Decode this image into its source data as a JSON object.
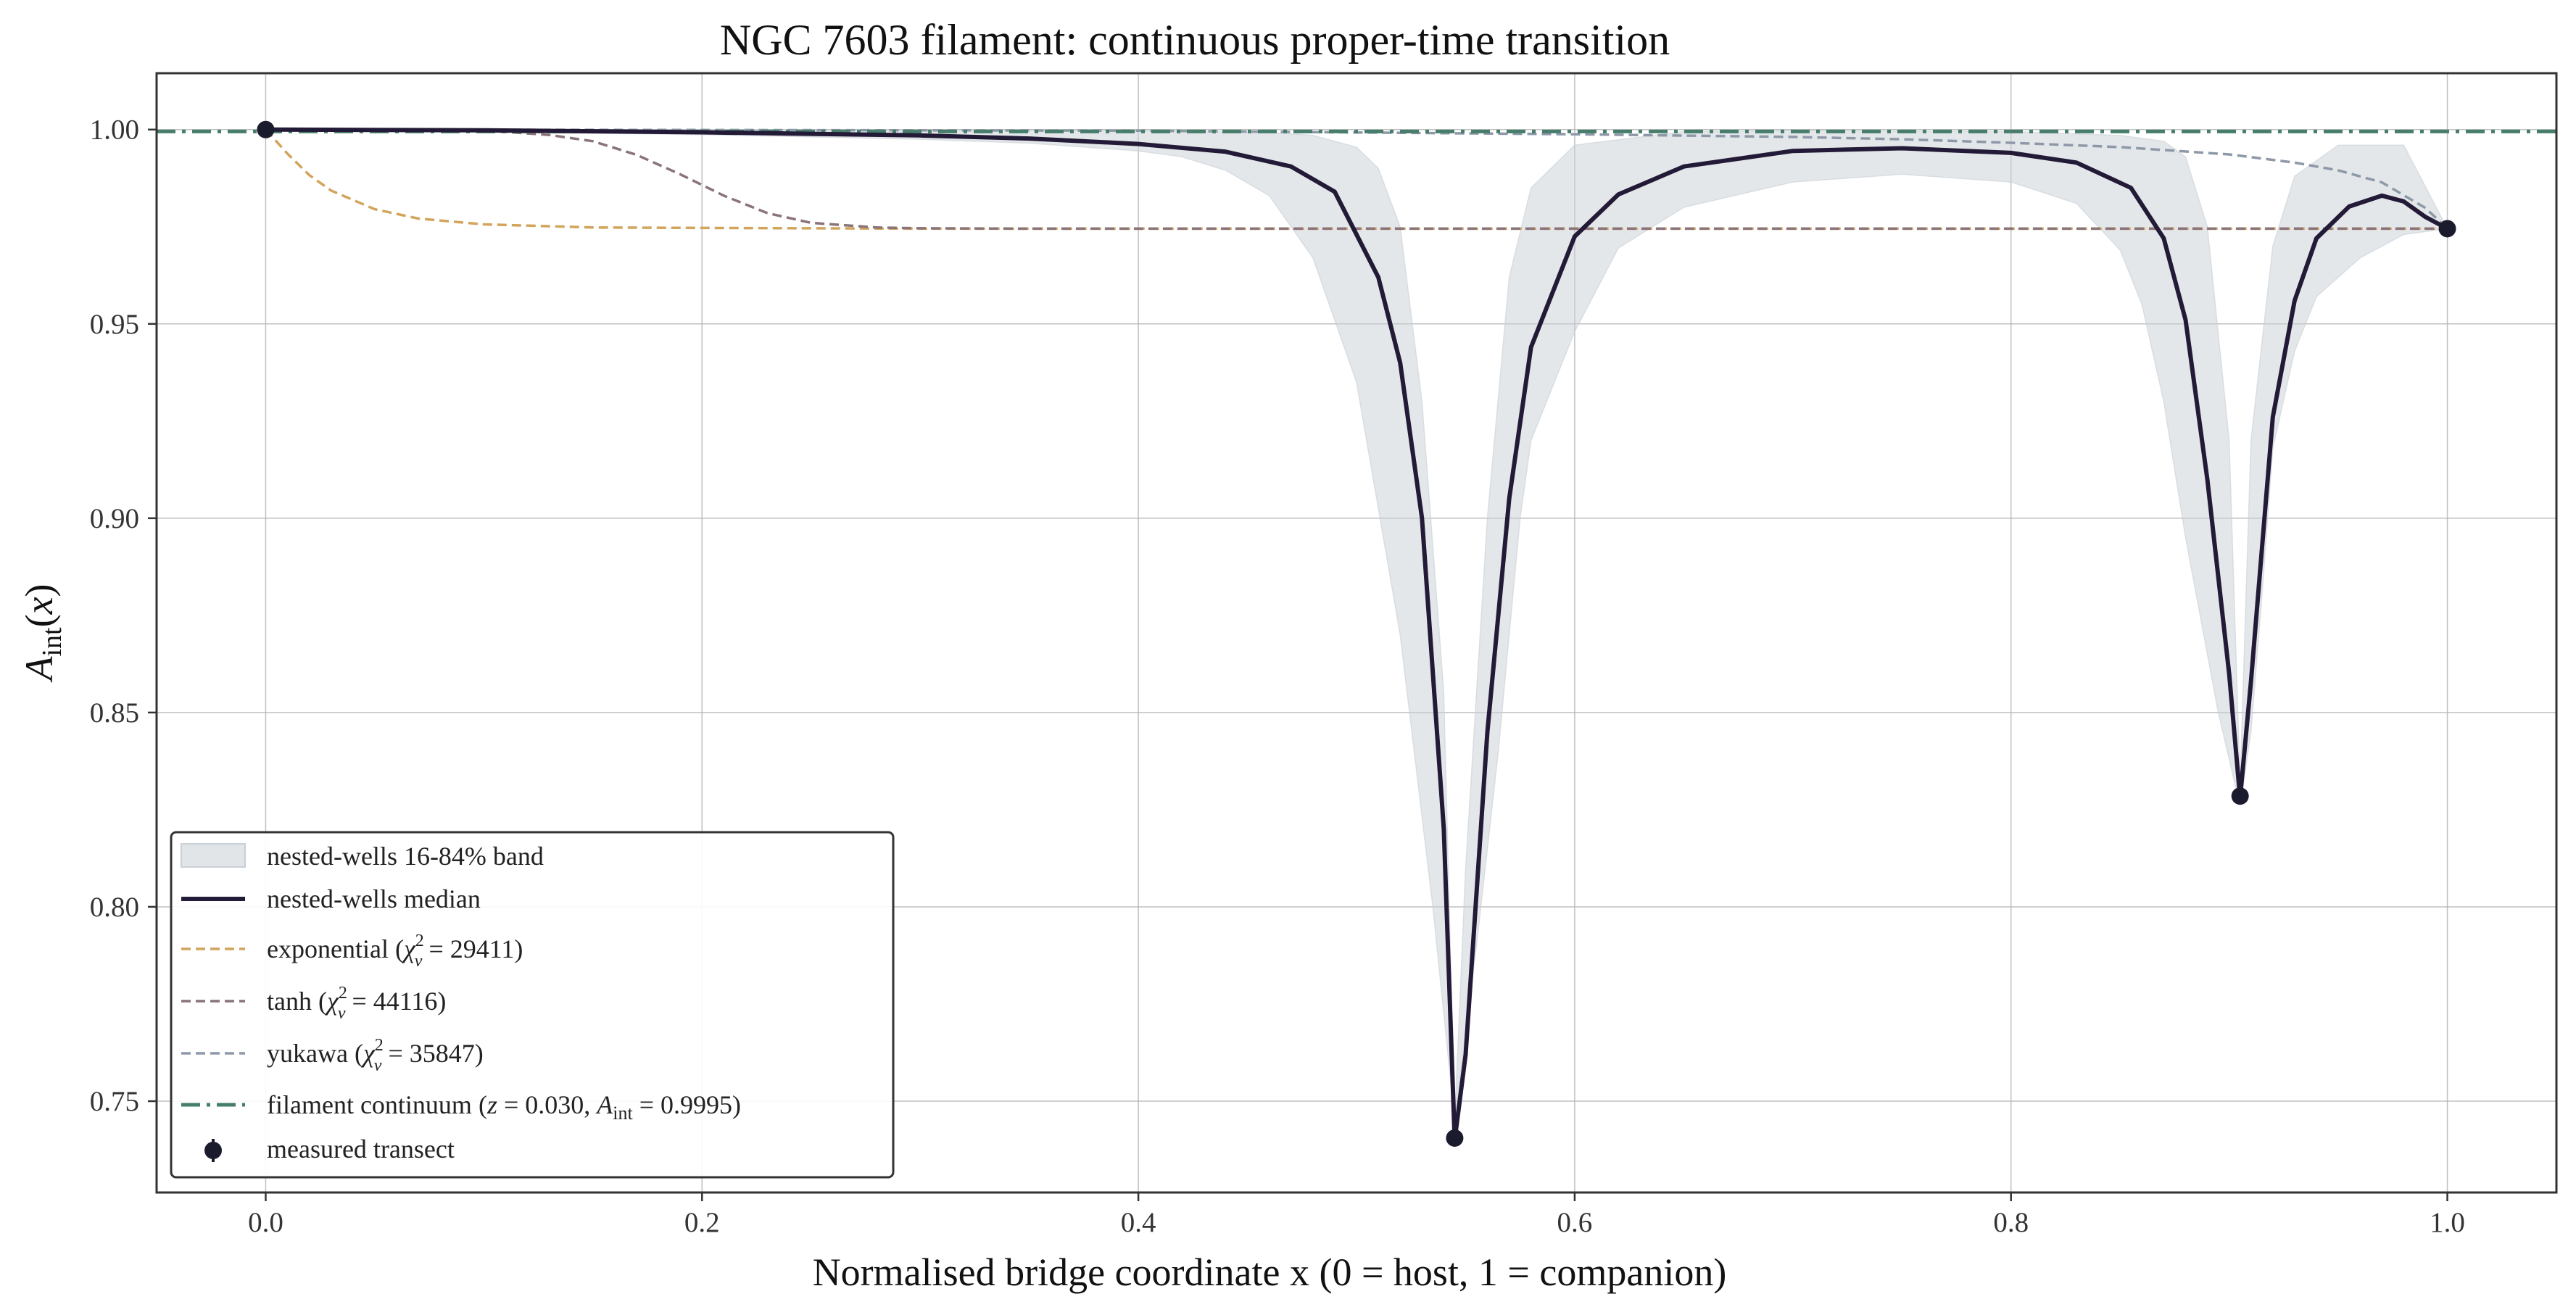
{
  "chart_data": {
    "type": "line",
    "title": "NGC 7603 filament: continuous proper-time transition",
    "xlabel": "Normalised bridge coordinate x (0 = host, 1 = companion)",
    "ylabel": "A_int(x)",
    "xlim": [
      -0.05,
      1.05
    ],
    "ylim": [
      0.7265,
      1.0145
    ],
    "xticks": [
      "0.0",
      "0.2",
      "0.4",
      "0.6",
      "0.8",
      "1.0"
    ],
    "yticks": [
      "0.75",
      "0.80",
      "0.85",
      "0.90",
      "0.95",
      "1.00"
    ],
    "grid": true,
    "legend_position": "lower-left",
    "colors": {
      "band": "#c9d0d6",
      "median": "#221a36",
      "exponential": "#d2a45c",
      "tanh": "#8a7379",
      "yukawa": "#8e99a8",
      "continuum": "#477e6b",
      "measured": "#1b1b2e"
    },
    "legend": [
      {
        "key": "band",
        "label": "nested-wells 16-84% band"
      },
      {
        "key": "median",
        "label": "nested-wells median"
      },
      {
        "key": "exponential",
        "label": "exponential (χ²_ν = 29411)"
      },
      {
        "key": "tanh",
        "label": "tanh (χ²_ν = 44116)"
      },
      {
        "key": "yukawa",
        "label": "yukawa (χ²_ν = 35847)"
      },
      {
        "key": "continuum",
        "label": "filament continuum (z = 0.030, A_int = 0.9995)"
      },
      {
        "key": "measured",
        "label": "measured transect"
      }
    ],
    "series": [
      {
        "name": "nested-wells median",
        "x": [
          0.0,
          0.1,
          0.2,
          0.3,
          0.35,
          0.4,
          0.44,
          0.47,
          0.49,
          0.51,
          0.52,
          0.53,
          0.54,
          0.545,
          0.55,
          0.56,
          0.57,
          0.58,
          0.6,
          0.62,
          0.65,
          0.7,
          0.75,
          0.8,
          0.83,
          0.855,
          0.87,
          0.88,
          0.89,
          0.9,
          0.905,
          0.91,
          0.92,
          0.93,
          0.94,
          0.955,
          0.97,
          0.98,
          0.99,
          1.0
        ],
        "y": [
          1.0,
          0.9998,
          0.9993,
          0.9985,
          0.9977,
          0.9963,
          0.9943,
          0.9905,
          0.984,
          0.962,
          0.94,
          0.9,
          0.82,
          0.74,
          0.762,
          0.845,
          0.905,
          0.944,
          0.9725,
          0.9833,
          0.9905,
          0.9945,
          0.9952,
          0.994,
          0.9915,
          0.985,
          0.972,
          0.951,
          0.91,
          0.86,
          0.828,
          0.858,
          0.926,
          0.956,
          0.972,
          0.9802,
          0.983,
          0.9815,
          0.9775,
          0.9745
        ]
      },
      {
        "name": "nested-wells 16-84% band (upper)",
        "x": [
          0.0,
          0.2,
          0.4,
          0.46,
          0.48,
          0.5,
          0.51,
          0.52,
          0.53,
          0.54,
          0.545,
          0.55,
          0.56,
          0.57,
          0.58,
          0.6,
          0.65,
          0.7,
          0.8,
          0.85,
          0.87,
          0.88,
          0.89,
          0.9,
          0.905,
          0.91,
          0.92,
          0.93,
          0.95,
          0.98,
          1.0
        ],
        "y": [
          1.0,
          1.0,
          0.9997,
          0.9993,
          0.9985,
          0.9955,
          0.99,
          0.975,
          0.93,
          0.855,
          0.745,
          0.81,
          0.9,
          0.962,
          0.985,
          0.996,
          0.9995,
          0.9997,
          0.9995,
          0.9985,
          0.997,
          0.993,
          0.975,
          0.92,
          0.832,
          0.92,
          0.97,
          0.988,
          0.996,
          0.996,
          0.9745
        ]
      },
      {
        "name": "nested-wells 16-84% band (lower)",
        "x": [
          0.0,
          0.2,
          0.3,
          0.35,
          0.4,
          0.42,
          0.44,
          0.46,
          0.48,
          0.5,
          0.52,
          0.535,
          0.545,
          0.555,
          0.565,
          0.57,
          0.575,
          0.58,
          0.6,
          0.62,
          0.65,
          0.7,
          0.75,
          0.8,
          0.83,
          0.85,
          0.86,
          0.87,
          0.88,
          0.895,
          0.905,
          0.91,
          0.915,
          0.92,
          0.93,
          0.94,
          0.96,
          0.98,
          1.0
        ],
        "y": [
          1.0,
          0.9987,
          0.9975,
          0.9965,
          0.9945,
          0.993,
          0.9895,
          0.983,
          0.967,
          0.935,
          0.87,
          0.8,
          0.745,
          0.79,
          0.84,
          0.87,
          0.9,
          0.92,
          0.948,
          0.9695,
          0.98,
          0.9865,
          0.9885,
          0.9865,
          0.981,
          0.969,
          0.955,
          0.93,
          0.895,
          0.85,
          0.826,
          0.845,
          0.88,
          0.918,
          0.943,
          0.957,
          0.967,
          0.973,
          0.9745
        ]
      },
      {
        "name": "exponential",
        "x": [
          0.0,
          0.01,
          0.02,
          0.03,
          0.05,
          0.07,
          0.1,
          0.15,
          0.2,
          0.3,
          0.5,
          0.7,
          1.0
        ],
        "y": [
          1.0,
          0.9938,
          0.9883,
          0.9843,
          0.9795,
          0.9771,
          0.9756,
          0.9748,
          0.9747,
          0.9745,
          0.9745,
          0.9745,
          0.9745
        ]
      },
      {
        "name": "tanh",
        "x": [
          0.0,
          0.1,
          0.13,
          0.15,
          0.17,
          0.19,
          0.21,
          0.23,
          0.25,
          0.28,
          0.3,
          0.35,
          1.0
        ],
        "y": [
          1.0,
          0.9998,
          0.9986,
          0.997,
          0.9935,
          0.9885,
          0.983,
          0.9785,
          0.976,
          0.9748,
          0.9746,
          0.9745,
          0.9745
        ]
      },
      {
        "name": "yukawa",
        "x": [
          0.0,
          0.2,
          0.4,
          0.6,
          0.7,
          0.75,
          0.8,
          0.85,
          0.9,
          0.93,
          0.95,
          0.97,
          0.99,
          1.0
        ],
        "y": [
          1.0,
          0.9999,
          0.9997,
          0.9988,
          0.9981,
          0.9975,
          0.9966,
          0.9955,
          0.9936,
          0.9915,
          0.9895,
          0.9864,
          0.9798,
          0.9745
        ]
      },
      {
        "name": "filament continuum",
        "x": [
          -0.05,
          1.05
        ],
        "y": [
          0.9995,
          0.9995
        ]
      },
      {
        "name": "measured transect",
        "x": [
          0.0,
          0.545,
          0.905,
          1.0
        ],
        "y": [
          1.0,
          0.7405,
          0.8285,
          0.9745
        ]
      }
    ]
  }
}
